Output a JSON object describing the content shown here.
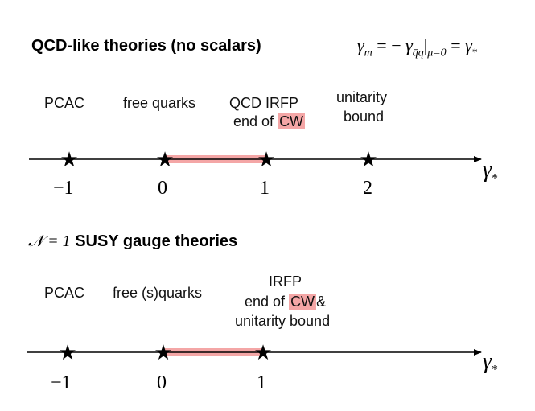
{
  "panel_top": {
    "title": "QCD-like theories (no scalars)",
    "formula": {
      "gamma_m": "γ",
      "sub_m": "m",
      "eq1": "= −",
      "gamma_q": "γ",
      "sub_qq": "q̄q",
      "restrict": "|",
      "sub_mu": "μ=0",
      "eq2": "=",
      "gamma_star": "γ",
      "sub_star": "*"
    },
    "labels": {
      "pcac": "PCAC",
      "free_quarks": "free quarks",
      "qcd_irfp": "QCD IRFP",
      "end_of": "end of",
      "cw": "CW",
      "unitarity": "unitarity",
      "bound": "bound"
    },
    "ticks": [
      "−1",
      "0",
      "1",
      "2"
    ],
    "axis_symbol": "γ",
    "axis_sub": "*"
  },
  "panel_bottom": {
    "title_math": "𝒩 = 1",
    "title_text": "SUSY gauge theories",
    "labels": {
      "pcac": "PCAC",
      "free_squarks": "free (s)quarks",
      "irfp": "IRFP",
      "end_of": "end of",
      "cw": "CW",
      "amp": "&",
      "unitarity_bound": "unitarity bound"
    },
    "ticks": [
      "−1",
      "0",
      "1"
    ],
    "axis_symbol": "γ",
    "axis_sub": "*"
  },
  "colors": {
    "highlight": "#f4a6a6",
    "axis": "#000000"
  }
}
